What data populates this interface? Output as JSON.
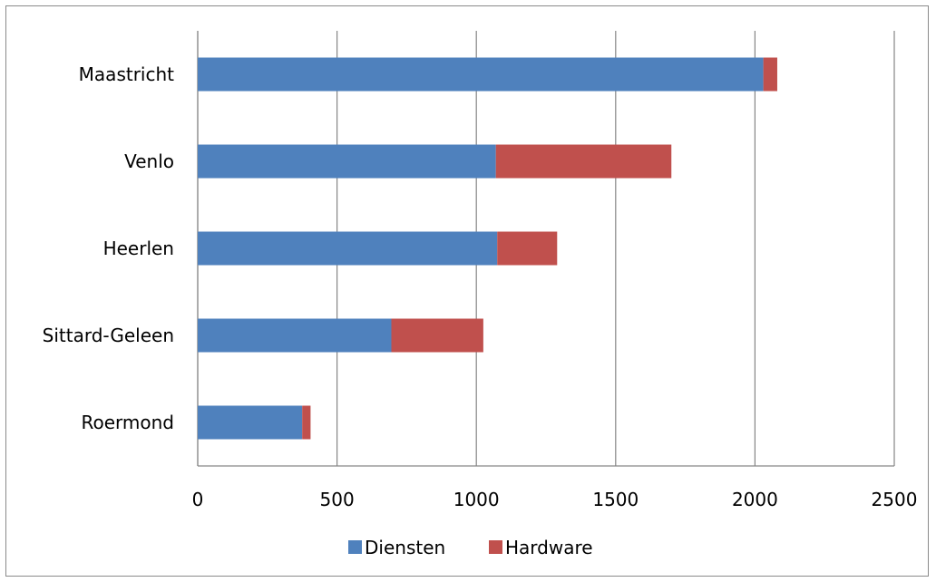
{
  "chart_data": {
    "type": "bar",
    "orientation": "horizontal",
    "stacked": true,
    "categories": [
      "Maastricht",
      "Venlo",
      "Heerlen",
      "Sittard-Geleen",
      "Roermond"
    ],
    "series": [
      {
        "name": "Diensten",
        "color": "#4f81bd",
        "values": [
          2030,
          1070,
          1075,
          695,
          375
        ]
      },
      {
        "name": "Hardware",
        "color": "#c0504d",
        "values": [
          50,
          630,
          215,
          330,
          30
        ]
      }
    ],
    "xlim": [
      0,
      2500
    ],
    "xticks": [
      "0",
      "500",
      "1000",
      "1500",
      "2000",
      "2500"
    ],
    "grid": true,
    "legend": "bottom",
    "title": "",
    "xlabel": "",
    "ylabel": ""
  }
}
